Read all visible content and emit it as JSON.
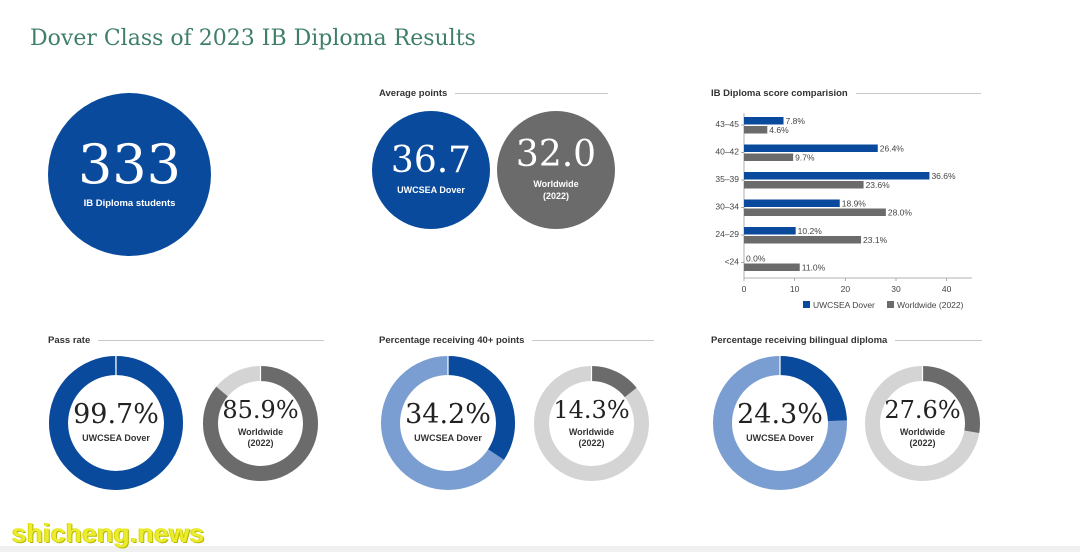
{
  "title": "Dover Class of 2023 IB Diploma Results",
  "students": {
    "value": "333",
    "label": "IB Diploma students",
    "color": "#0a4a9c"
  },
  "average_points": {
    "label": "Average points",
    "dover": {
      "value": "36.7",
      "label": "UWCSEA Dover",
      "color": "#0a4a9c"
    },
    "world": {
      "value": "32.0",
      "label1": "Worldwide",
      "label2": "(2022)",
      "color": "#6b6b6b"
    }
  },
  "pass_rate": {
    "label": "Pass rate",
    "dover": {
      "text": "99.7%",
      "value": 99.7,
      "label": "UWCSEA Dover"
    },
    "world": {
      "text": "85.9%",
      "value": 85.9,
      "label1": "Worldwide",
      "label2": "(2022)"
    }
  },
  "pct40": {
    "label": "Percentage receiving 40+ points",
    "dover": {
      "text": "34.2%",
      "value": 34.2,
      "label": "UWCSEA Dover"
    },
    "world": {
      "text": "14.3%",
      "value": 14.3,
      "label1": "Worldwide",
      "label2": "(2022)"
    }
  },
  "bilingual": {
    "label": "Percentage receiving bilingual diploma",
    "dover": {
      "text": "24.3%",
      "value": 24.3,
      "label": "UWCSEA Dover"
    },
    "world": {
      "text": "27.6%",
      "value": 27.6,
      "label1": "Worldwide",
      "label2": "(2022)"
    }
  },
  "colors": {
    "dover_blue": "#0a4a9c",
    "dover_light": "#7a9ed1",
    "world_dark": "#6b6b6b",
    "world_light": "#d4d4d4"
  },
  "watermark": "shicheng.news",
  "chart_data": {
    "type": "bar",
    "orientation": "horizontal",
    "title": "IB Diploma score comparision",
    "categories": [
      "43–45",
      "40–42",
      "35–39",
      "30–34",
      "24–29",
      "<24"
    ],
    "series": [
      {
        "name": "UWCSEA Dover",
        "values": [
          7.8,
          26.4,
          36.6,
          18.9,
          10.2,
          0.0
        ],
        "labels": [
          "7.8%",
          "26.4%",
          "36.6%",
          "18.9%",
          "10.2%",
          "0.0%"
        ],
        "color": "#0a4a9c"
      },
      {
        "name": "Worldwide (2022)",
        "values": [
          4.6,
          9.7,
          23.6,
          28.0,
          23.1,
          11.0
        ],
        "labels": [
          "4.6%",
          "9.7%",
          "23.6%",
          "28.0%",
          "23.1%",
          "11.0%"
        ],
        "color": "#6b6b6b"
      }
    ],
    "xlim": [
      0,
      45
    ],
    "xticks": [
      "0",
      "10",
      "20",
      "30",
      "40"
    ],
    "xtick_values": [
      0,
      10,
      20,
      30,
      40
    ],
    "legend": "bottom-right",
    "grid": false
  }
}
